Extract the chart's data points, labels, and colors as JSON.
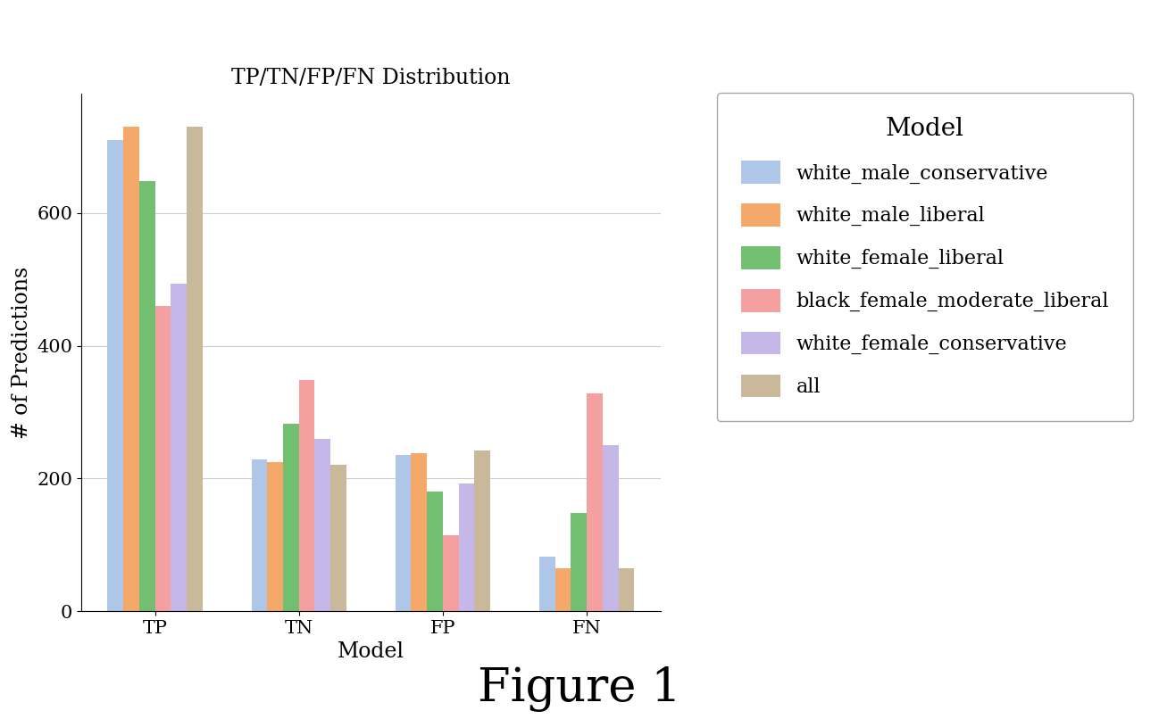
{
  "title": "TP/TN/FP/FN Distribution",
  "xlabel": "Model",
  "ylabel": "# of Predictions",
  "figure_caption": "Figure 1",
  "categories": [
    "TP",
    "TN",
    "FP",
    "FN"
  ],
  "models": [
    "white_male_conservative",
    "white_male_liberal",
    "white_female_liberal",
    "black_female_moderate_liberal",
    "white_female_conservative",
    "all"
  ],
  "colors": [
    "#aec6e8",
    "#f4a96a",
    "#72bf72",
    "#f4a0a0",
    "#c5b8e8",
    "#c9b99a"
  ],
  "values": {
    "TP": [
      710,
      730,
      648,
      460,
      493,
      730
    ],
    "TN": [
      228,
      225,
      282,
      348,
      260,
      220
    ],
    "FP": [
      235,
      238,
      180,
      114,
      192,
      242
    ],
    "FN": [
      82,
      65,
      148,
      328,
      250,
      65
    ]
  },
  "ylim": [
    0,
    780
  ],
  "yticks": [
    0,
    200,
    400,
    600
  ],
  "legend_title": "Model",
  "legend_fontsize": 16,
  "legend_title_fontsize": 20,
  "title_fontsize": 17,
  "axis_label_fontsize": 17,
  "tick_fontsize": 15,
  "caption_fontsize": 38,
  "bar_width": 0.11,
  "background_color": "#ffffff",
  "grid_color": "#cccccc",
  "grid_linewidth": 0.8
}
